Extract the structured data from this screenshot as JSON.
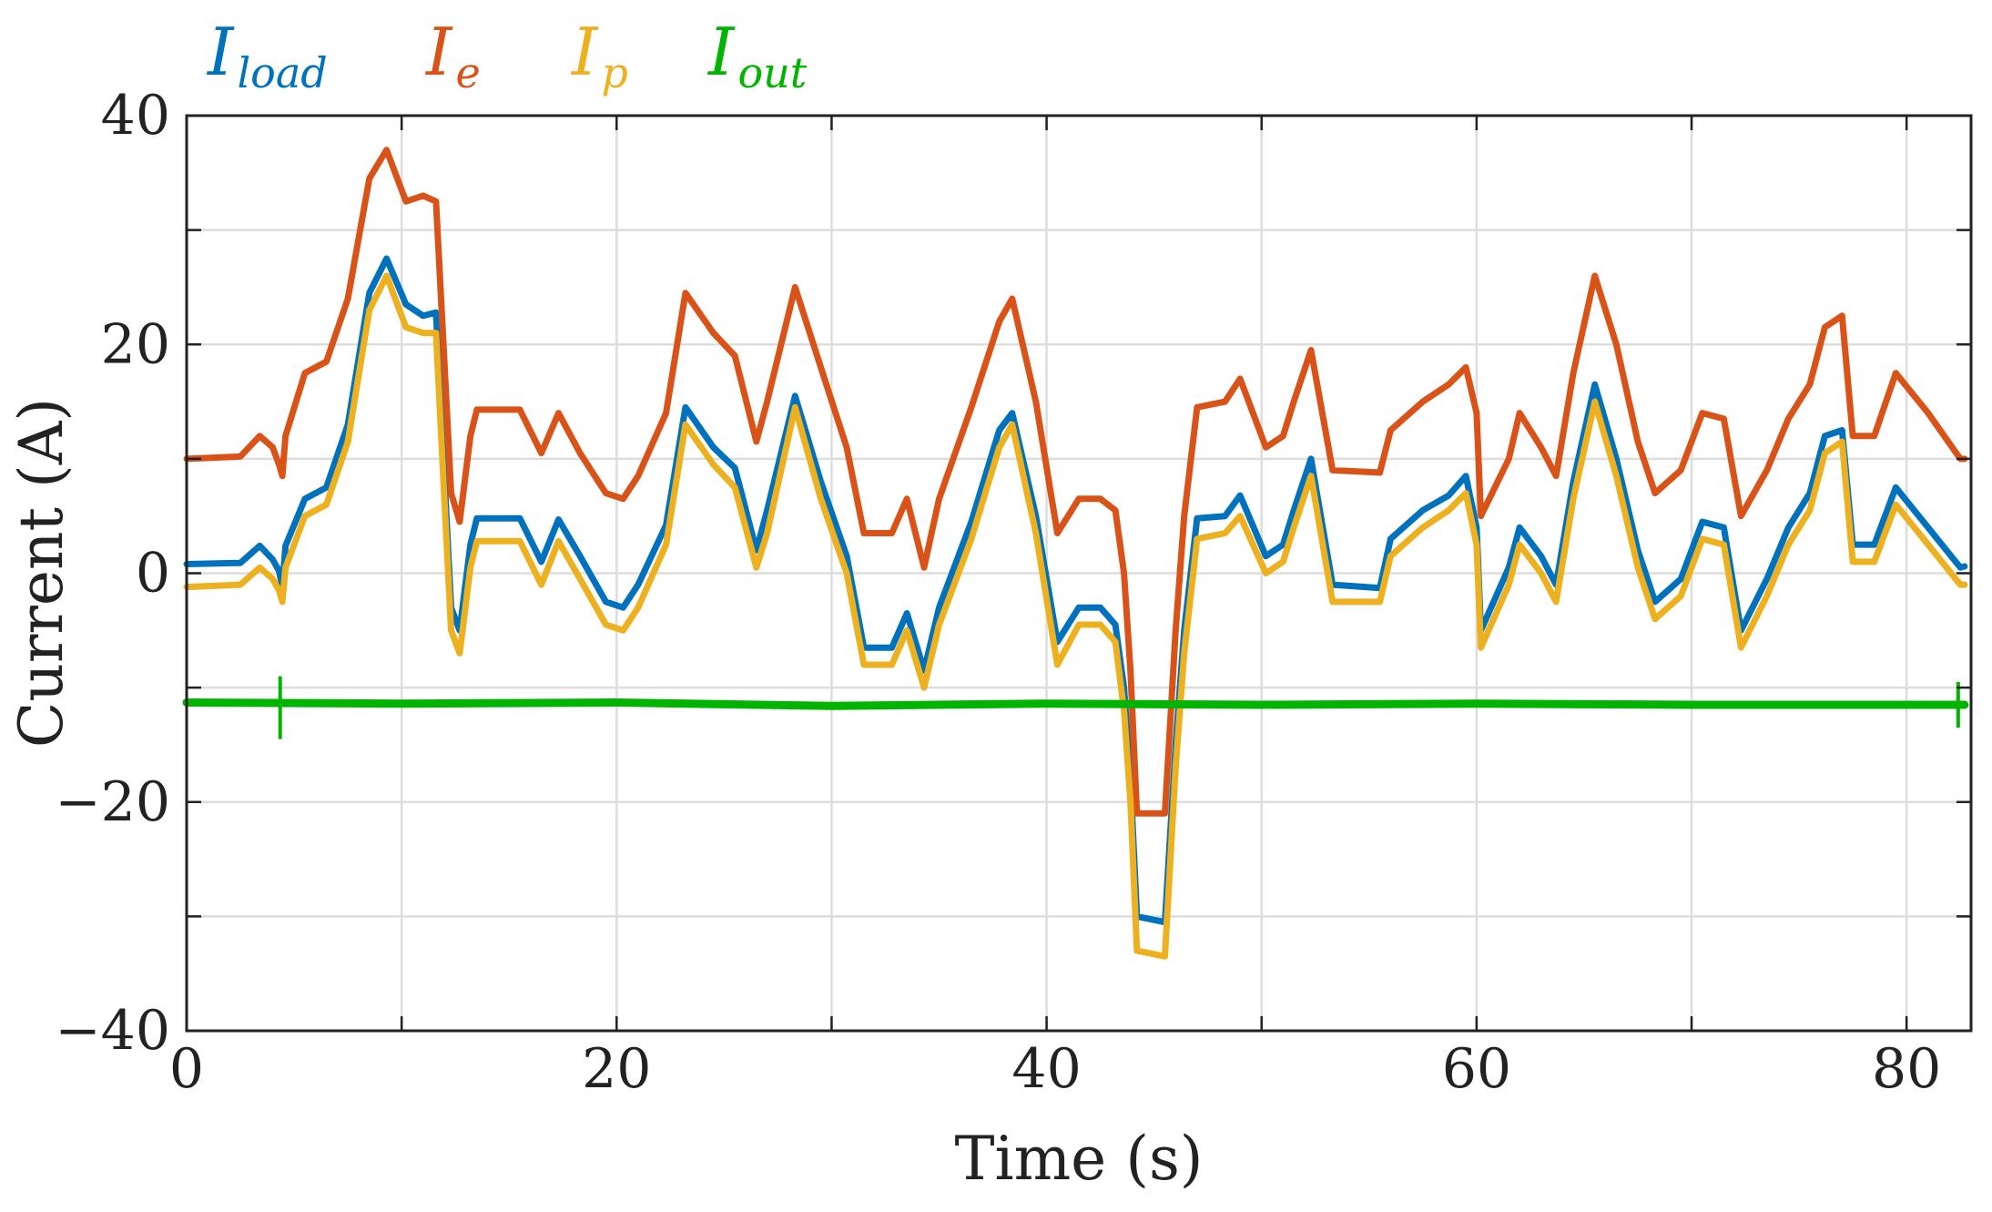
{
  "chart_data": {
    "type": "line",
    "title": "",
    "xlabel": "Time (s)",
    "ylabel": "Current (A)",
    "xlim": [
      0,
      83
    ],
    "ylim": [
      -40,
      40
    ],
    "xticks": [
      0,
      20,
      40,
      60,
      80
    ],
    "xtick_labels": [
      "0",
      "20",
      "40",
      "60",
      "80"
    ],
    "xgrid": [
      0,
      10,
      20,
      30,
      40,
      50,
      60,
      70,
      80
    ],
    "yticks": [
      -40,
      -20,
      0,
      20,
      40
    ],
    "ytick_labels": [
      "−40",
      "−20",
      "0",
      "20",
      "40"
    ],
    "ygrid": [
      -40,
      -30,
      -20,
      -10,
      0,
      10,
      20,
      30,
      40
    ],
    "grid": true,
    "legend_position": "top-left, above plot",
    "series": [
      {
        "name": "I_load",
        "legend_main": "I",
        "legend_sub": "load",
        "color": "#0072BD",
        "points": [
          [
            0,
            0.8
          ],
          [
            2.5,
            0.9
          ],
          [
            3.4,
            2.4
          ],
          [
            4.0,
            1.2
          ],
          [
            4.3,
            0.2
          ],
          [
            4.45,
            -1.2
          ],
          [
            4.6,
            2.4
          ],
          [
            5.5,
            6.5
          ],
          [
            6.5,
            7.5
          ],
          [
            7.5,
            13
          ],
          [
            8.5,
            24.5
          ],
          [
            9.3,
            27.5
          ],
          [
            10.2,
            23.5
          ],
          [
            11,
            22.5
          ],
          [
            11.6,
            22.8
          ],
          [
            12,
            8
          ],
          [
            12.3,
            -3
          ],
          [
            12.7,
            -5
          ],
          [
            13.2,
            2.5
          ],
          [
            13.5,
            4.8
          ],
          [
            15.5,
            4.8
          ],
          [
            16.5,
            1.0
          ],
          [
            17.3,
            4.7
          ],
          [
            18.3,
            1.5
          ],
          [
            19.5,
            -2.5
          ],
          [
            20.3,
            -3.0
          ],
          [
            21.0,
            -1.0
          ],
          [
            22.3,
            4.2
          ],
          [
            23.2,
            14.5
          ],
          [
            24.5,
            11.0
          ],
          [
            25.5,
            9.2
          ],
          [
            26.5,
            2.0
          ],
          [
            27,
            5.5
          ],
          [
            28.3,
            15.5
          ],
          [
            29.5,
            8
          ],
          [
            30.7,
            1.5
          ],
          [
            31.5,
            -6.5
          ],
          [
            32.8,
            -6.5
          ],
          [
            33.5,
            -3.5
          ],
          [
            34.3,
            -8.5
          ],
          [
            35,
            -3
          ],
          [
            36.5,
            4.5
          ],
          [
            37.8,
            12.5
          ],
          [
            38.4,
            14.0
          ],
          [
            39.5,
            5
          ],
          [
            40.5,
            -6
          ],
          [
            41.5,
            -3
          ],
          [
            42.5,
            -3
          ],
          [
            43.2,
            -4.5
          ],
          [
            43.6,
            -10
          ],
          [
            43.9,
            -18
          ],
          [
            44.2,
            -30
          ],
          [
            45.5,
            -30.5
          ],
          [
            46,
            -15
          ],
          [
            46.4,
            -5
          ],
          [
            47.0,
            4.8
          ],
          [
            48.3,
            5.0
          ],
          [
            49.0,
            6.8
          ],
          [
            50.2,
            1.5
          ],
          [
            51.0,
            2.5
          ],
          [
            51.5,
            5.5
          ],
          [
            52.3,
            10.0
          ],
          [
            53.3,
            -1.0
          ],
          [
            55.5,
            -1.3
          ],
          [
            56,
            3.0
          ],
          [
            57.5,
            5.5
          ],
          [
            58.7,
            6.8
          ],
          [
            59.5,
            8.5
          ],
          [
            60.0,
            4
          ],
          [
            60.2,
            -5.0
          ],
          [
            61.5,
            0.5
          ],
          [
            62.0,
            4.0
          ],
          [
            63.0,
            1.5
          ],
          [
            63.7,
            -1.0
          ],
          [
            64.5,
            8.0
          ],
          [
            65.5,
            16.5
          ],
          [
            66.5,
            10.0
          ],
          [
            67.5,
            2.0
          ],
          [
            68.3,
            -2.5
          ],
          [
            69.5,
            -0.5
          ],
          [
            70.5,
            4.5
          ],
          [
            71.5,
            4.0
          ],
          [
            72.3,
            -5.0
          ],
          [
            73.5,
            -0.5
          ],
          [
            74.5,
            4.0
          ],
          [
            75.5,
            7.0
          ],
          [
            76.2,
            12.0
          ],
          [
            77.0,
            12.5
          ],
          [
            77.5,
            2.5
          ],
          [
            78.5,
            2.5
          ],
          [
            79.5,
            7.5
          ],
          [
            81.0,
            4.0
          ],
          [
            82.5,
            0.5
          ],
          [
            82.7,
            0.6
          ]
        ]
      },
      {
        "name": "I_e",
        "legend_main": "I",
        "legend_sub": "e",
        "color": "#D95319",
        "points": [
          [
            0,
            10.0
          ],
          [
            2.5,
            10.2
          ],
          [
            3.4,
            12.0
          ],
          [
            4.0,
            11.0
          ],
          [
            4.3,
            9.5
          ],
          [
            4.45,
            8.5
          ],
          [
            4.6,
            12.0
          ],
          [
            5.5,
            17.5
          ],
          [
            6.5,
            18.5
          ],
          [
            7.5,
            24.0
          ],
          [
            8.5,
            34.5
          ],
          [
            9.3,
            37.0
          ],
          [
            10.2,
            32.5
          ],
          [
            11,
            33.0
          ],
          [
            11.6,
            32.5
          ],
          [
            12,
            18.0
          ],
          [
            12.3,
            7.0
          ],
          [
            12.7,
            4.5
          ],
          [
            13.2,
            12.0
          ],
          [
            13.5,
            14.3
          ],
          [
            15.5,
            14.3
          ],
          [
            16.5,
            10.5
          ],
          [
            17.3,
            14.0
          ],
          [
            18.3,
            10.5
          ],
          [
            19.5,
            7.0
          ],
          [
            20.3,
            6.5
          ],
          [
            21.0,
            8.5
          ],
          [
            22.3,
            14.0
          ],
          [
            23.2,
            24.5
          ],
          [
            24.5,
            21.0
          ],
          [
            25.5,
            19.0
          ],
          [
            26.5,
            11.5
          ],
          [
            27,
            15.0
          ],
          [
            28.3,
            25.0
          ],
          [
            29.5,
            18.0
          ],
          [
            30.7,
            11.0
          ],
          [
            31.5,
            3.5
          ],
          [
            32.8,
            3.5
          ],
          [
            33.5,
            6.5
          ],
          [
            34.3,
            0.5
          ],
          [
            35,
            6.5
          ],
          [
            36.5,
            14.5
          ],
          [
            37.8,
            22.0
          ],
          [
            38.4,
            24.0
          ],
          [
            39.5,
            15.0
          ],
          [
            40.5,
            3.5
          ],
          [
            41.5,
            6.5
          ],
          [
            42.5,
            6.5
          ],
          [
            43.2,
            5.5
          ],
          [
            43.6,
            0
          ],
          [
            43.9,
            -8.5
          ],
          [
            44.2,
            -21.0
          ],
          [
            45.5,
            -21.0
          ],
          [
            46,
            -5.0
          ],
          [
            46.4,
            5.0
          ],
          [
            47.0,
            14.5
          ],
          [
            48.3,
            15.0
          ],
          [
            49.0,
            17.0
          ],
          [
            50.2,
            11.0
          ],
          [
            51.0,
            12.0
          ],
          [
            51.5,
            15.0
          ],
          [
            52.3,
            19.5
          ],
          [
            53.3,
            9.0
          ],
          [
            55.5,
            8.8
          ],
          [
            56,
            12.5
          ],
          [
            57.5,
            15.0
          ],
          [
            58.7,
            16.5
          ],
          [
            59.5,
            18.0
          ],
          [
            60.0,
            14.0
          ],
          [
            60.2,
            5.0
          ],
          [
            61.5,
            10.0
          ],
          [
            62.0,
            14.0
          ],
          [
            63.0,
            11.0
          ],
          [
            63.7,
            8.5
          ],
          [
            64.5,
            17.5
          ],
          [
            65.5,
            26.0
          ],
          [
            66.5,
            20.0
          ],
          [
            67.5,
            11.5
          ],
          [
            68.3,
            7.0
          ],
          [
            69.5,
            9.0
          ],
          [
            70.5,
            14.0
          ],
          [
            71.5,
            13.5
          ],
          [
            72.3,
            5.0
          ],
          [
            73.5,
            9.0
          ],
          [
            74.5,
            13.5
          ],
          [
            75.5,
            16.5
          ],
          [
            76.2,
            21.5
          ],
          [
            77.0,
            22.5
          ],
          [
            77.5,
            12.0
          ],
          [
            78.5,
            12.0
          ],
          [
            79.5,
            17.5
          ],
          [
            81.0,
            14.0
          ],
          [
            82.5,
            10.0
          ],
          [
            82.7,
            10.0
          ]
        ]
      },
      {
        "name": "I_p",
        "legend_main": "I",
        "legend_sub": "p",
        "color": "#EDB120",
        "points": [
          [
            0,
            -1.2
          ],
          [
            2.5,
            -1.0
          ],
          [
            3.4,
            0.5
          ],
          [
            4.0,
            -0.5
          ],
          [
            4.3,
            -1.5
          ],
          [
            4.45,
            -2.5
          ],
          [
            4.6,
            0.5
          ],
          [
            5.5,
            5.0
          ],
          [
            6.5,
            6.0
          ],
          [
            7.5,
            11.5
          ],
          [
            8.5,
            23.0
          ],
          [
            9.3,
            26.0
          ],
          [
            10.2,
            21.5
          ],
          [
            11,
            21.0
          ],
          [
            11.6,
            21.0
          ],
          [
            12,
            6.0
          ],
          [
            12.3,
            -5.0
          ],
          [
            12.7,
            -7.0
          ],
          [
            13.2,
            0.5
          ],
          [
            13.5,
            2.8
          ],
          [
            15.5,
            2.8
          ],
          [
            16.5,
            -1.0
          ],
          [
            17.3,
            2.8
          ],
          [
            18.3,
            -0.5
          ],
          [
            19.5,
            -4.5
          ],
          [
            20.3,
            -5.0
          ],
          [
            21.0,
            -3.0
          ],
          [
            22.3,
            2.5
          ],
          [
            23.2,
            13.0
          ],
          [
            24.5,
            9.5
          ],
          [
            25.5,
            7.5
          ],
          [
            26.5,
            0.5
          ],
          [
            27,
            3.5
          ],
          [
            28.3,
            14.5
          ],
          [
            29.5,
            6.5
          ],
          [
            30.7,
            0
          ],
          [
            31.5,
            -8.0
          ],
          [
            32.8,
            -8.0
          ],
          [
            33.5,
            -5.0
          ],
          [
            34.3,
            -10.0
          ],
          [
            35,
            -4.5
          ],
          [
            36.5,
            3.0
          ],
          [
            37.8,
            11.0
          ],
          [
            38.4,
            13.0
          ],
          [
            39.5,
            3.5
          ],
          [
            40.5,
            -8.0
          ],
          [
            41.5,
            -4.5
          ],
          [
            42.5,
            -4.5
          ],
          [
            43.2,
            -6.0
          ],
          [
            43.6,
            -12.0
          ],
          [
            43.9,
            -20.0
          ],
          [
            44.2,
            -33.0
          ],
          [
            45.5,
            -33.5
          ],
          [
            46,
            -17.0
          ],
          [
            46.4,
            -7.0
          ],
          [
            47.0,
            3.0
          ],
          [
            48.3,
            3.5
          ],
          [
            49.0,
            5.0
          ],
          [
            50.2,
            0
          ],
          [
            51.0,
            1.0
          ],
          [
            51.5,
            4.0
          ],
          [
            52.3,
            8.5
          ],
          [
            53.3,
            -2.5
          ],
          [
            55.5,
            -2.5
          ],
          [
            56,
            1.5
          ],
          [
            57.5,
            4.0
          ],
          [
            58.7,
            5.5
          ],
          [
            59.5,
            7.0
          ],
          [
            60.0,
            2.5
          ],
          [
            60.2,
            -6.5
          ],
          [
            61.5,
            -1.0
          ],
          [
            62.0,
            2.5
          ],
          [
            63.0,
            0
          ],
          [
            63.7,
            -2.5
          ],
          [
            64.5,
            6.5
          ],
          [
            65.5,
            15.0
          ],
          [
            66.5,
            8.5
          ],
          [
            67.5,
            0.5
          ],
          [
            68.3,
            -4.0
          ],
          [
            69.5,
            -2.0
          ],
          [
            70.5,
            3.0
          ],
          [
            71.5,
            2.5
          ],
          [
            72.3,
            -6.5
          ],
          [
            73.5,
            -2.0
          ],
          [
            74.5,
            2.5
          ],
          [
            75.5,
            5.5
          ],
          [
            76.2,
            10.5
          ],
          [
            77.0,
            11.5
          ],
          [
            77.5,
            1.0
          ],
          [
            78.5,
            1.0
          ],
          [
            79.5,
            6.0
          ],
          [
            81.0,
            2.5
          ],
          [
            82.5,
            -1.0
          ],
          [
            82.7,
            -1.0
          ]
        ]
      },
      {
        "name": "I_out",
        "legend_main": "I",
        "legend_sub": "out",
        "color": "#00B400",
        "points": [
          [
            0,
            -11.3
          ],
          [
            10,
            -11.4
          ],
          [
            20,
            -11.3
          ],
          [
            30,
            -11.6
          ],
          [
            40,
            -11.4
          ],
          [
            50,
            -11.5
          ],
          [
            60,
            -11.4
          ],
          [
            70,
            -11.5
          ],
          [
            80,
            -11.5
          ],
          [
            82.7,
            -11.5
          ]
        ],
        "spikes": [
          [
            4.35,
            -9.0,
            -14.5
          ],
          [
            82.4,
            -9.5,
            -13.5
          ]
        ]
      }
    ]
  }
}
